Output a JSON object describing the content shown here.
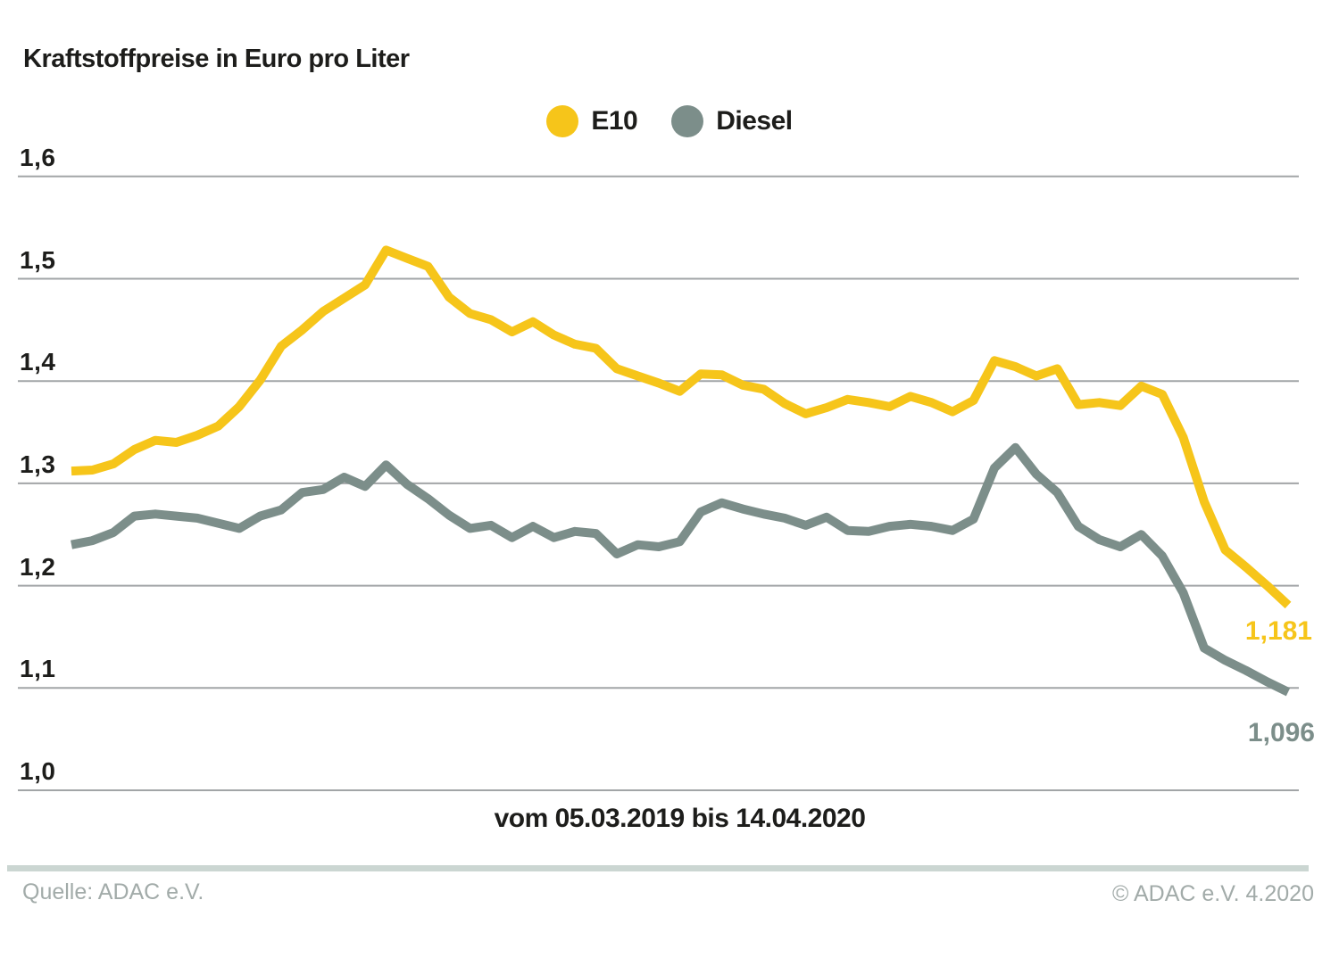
{
  "title": "Kraftstoffpreise in Euro pro Liter",
  "legend": [
    {
      "label": "E10",
      "color": "#f6c51a"
    },
    {
      "label": "Diesel",
      "color": "#7c8e8a"
    }
  ],
  "caption": "vom 05.03.2019 bis 14.04.2020",
  "footer": {
    "source": "Quelle: ADAC e.V.",
    "copyright": "© ADAC e.V. 4.2020"
  },
  "colors": {
    "e10_line": "#f6c51a",
    "diesel_line": "#7c8e8a",
    "gridline": "#a2a5a7",
    "text": "#1d1d1b",
    "footer_text": "#a2aba9",
    "divider": "#cbd6d2"
  },
  "chart_data": {
    "type": "line",
    "title": "Kraftstoffpreise in Euro pro Liter",
    "xlabel": "vom 05.03.2019 bis 14.04.2020",
    "ylabel": "Euro pro Liter",
    "x_range": {
      "start": "05.03.2019",
      "end": "14.04.2020",
      "interval": "weekly"
    },
    "ylim": [
      1.0,
      1.6
    ],
    "grid": true,
    "legend_position": "top-center",
    "y_ticks": [
      {
        "value": 1.6,
        "label": "1,6"
      },
      {
        "value": 1.5,
        "label": "1,5"
      },
      {
        "value": 1.4,
        "label": "1,4"
      },
      {
        "value": 1.3,
        "label": "1,3"
      },
      {
        "value": 1.2,
        "label": "1,2"
      },
      {
        "value": 1.1,
        "label": "1,1"
      },
      {
        "value": 1.0,
        "label": "1,0"
      }
    ],
    "series": [
      {
        "name": "E10",
        "color": "#f6c51a",
        "end_label": "1,181",
        "end_value": 1.181,
        "values": [
          1.312,
          1.313,
          1.319,
          1.333,
          1.342,
          1.34,
          1.347,
          1.356,
          1.375,
          1.401,
          1.434,
          1.45,
          1.468,
          1.481,
          1.494,
          1.528,
          1.52,
          1.512,
          1.482,
          1.466,
          1.46,
          1.448,
          1.458,
          1.445,
          1.436,
          1.432,
          1.412,
          1.405,
          1.398,
          1.39,
          1.407,
          1.406,
          1.396,
          1.392,
          1.378,
          1.368,
          1.374,
          1.382,
          1.379,
          1.375,
          1.385,
          1.379,
          1.37,
          1.381,
          1.42,
          1.414,
          1.405,
          1.412,
          1.377,
          1.379,
          1.376,
          1.395,
          1.387,
          1.345,
          1.282,
          1.235,
          1.218,
          1.2,
          1.181
        ]
      },
      {
        "name": "Diesel",
        "color": "#7c8e8a",
        "end_label": "1,096",
        "end_value": 1.096,
        "values": [
          1.24,
          1.244,
          1.252,
          1.268,
          1.27,
          1.268,
          1.266,
          1.261,
          1.256,
          1.268,
          1.274,
          1.291,
          1.294,
          1.306,
          1.297,
          1.318,
          1.299,
          1.285,
          1.269,
          1.256,
          1.259,
          1.247,
          1.258,
          1.247,
          1.253,
          1.251,
          1.231,
          1.24,
          1.238,
          1.243,
          1.272,
          1.281,
          1.275,
          1.27,
          1.266,
          1.259,
          1.267,
          1.254,
          1.253,
          1.258,
          1.26,
          1.258,
          1.254,
          1.265,
          1.315,
          1.335,
          1.309,
          1.291,
          1.258,
          1.245,
          1.238,
          1.25,
          1.229,
          1.193,
          1.139,
          1.127,
          1.117,
          1.106,
          1.096
        ]
      }
    ]
  }
}
